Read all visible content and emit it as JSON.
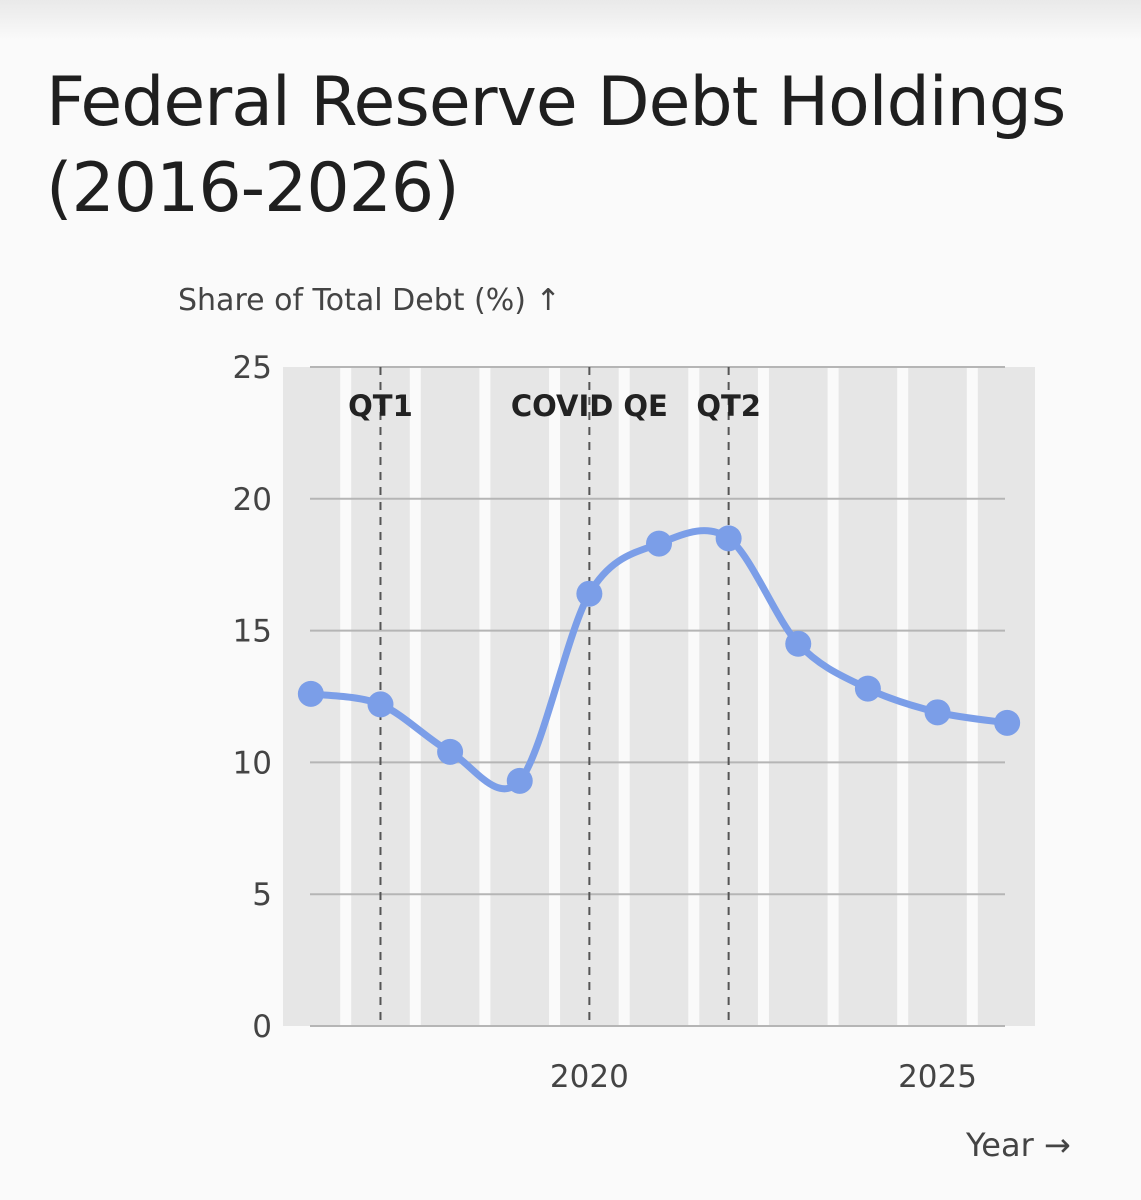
{
  "chart_data": {
    "type": "line",
    "title": "Federal Reserve Debt Holdings (2016-2026)",
    "xlabel": "Year →",
    "ylabel": "Share of Total Debt (%) ↑",
    "x": [
      2016,
      2017,
      2018,
      2019,
      2020,
      2021,
      2022,
      2023,
      2024,
      2025,
      2026
    ],
    "series": [
      {
        "values": [
          12.6,
          12.2,
          10.4,
          9.3,
          16.4,
          18.3,
          18.5,
          14.5,
          12.8,
          11.9,
          11.5
        ]
      }
    ],
    "xlim": [
      2015.6,
      2026.4
    ],
    "ylim": [
      0,
      25
    ],
    "yticks": [
      0,
      5,
      10,
      15,
      20,
      25
    ],
    "xticks": [
      2020,
      2025
    ],
    "annotations": [
      {
        "x": 2017,
        "label": "QT1"
      },
      {
        "x": 2020,
        "label": "COVID QE"
      },
      {
        "x": 2022,
        "label": "QT2"
      }
    ],
    "grid": "horizontal",
    "legend": "none",
    "colors": {
      "line": "#7b9ee8",
      "band": "#e6e6e6",
      "grid": "#b5b5b5",
      "annotation": "#555555"
    }
  }
}
